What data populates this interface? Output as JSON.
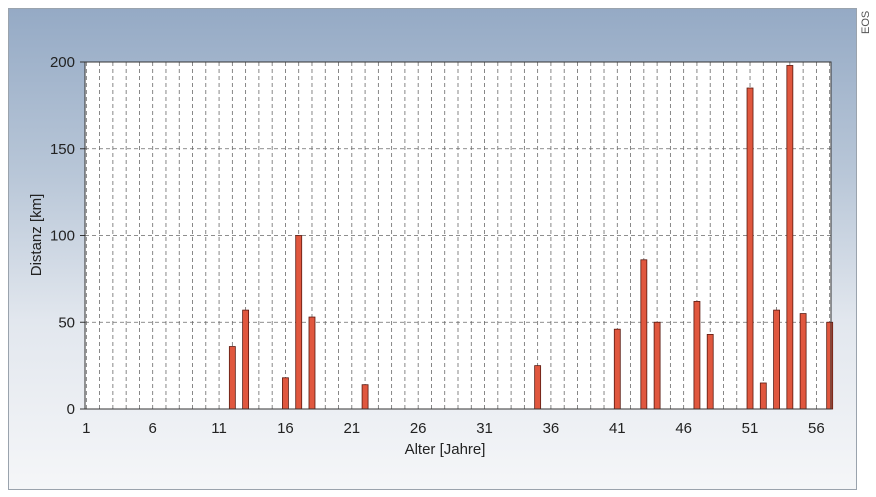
{
  "side_text": "EOS",
  "chart_data": {
    "type": "bar",
    "title": "",
    "xlabel": "Alter [Jahre]",
    "ylabel": "Distanz [km]",
    "xlim": [
      1,
      57
    ],
    "ylim": [
      0,
      200
    ],
    "xticks": [
      1,
      6,
      11,
      16,
      21,
      26,
      31,
      36,
      41,
      46,
      51,
      56
    ],
    "yticks": [
      0,
      50,
      100,
      150,
      200
    ],
    "grid": true,
    "x": [
      12,
      13,
      16,
      17,
      18,
      22,
      35,
      41,
      43,
      44,
      47,
      48,
      51,
      52,
      53,
      54,
      55,
      57
    ],
    "values": [
      36,
      57,
      18,
      100,
      53,
      14,
      25,
      46,
      86,
      50,
      62,
      43,
      185,
      15,
      57,
      198,
      55,
      50
    ],
    "colors": {
      "bar": "#e0573e",
      "bar_edge": "#5a1a10",
      "plot_bg": "#ffffff"
    }
  }
}
